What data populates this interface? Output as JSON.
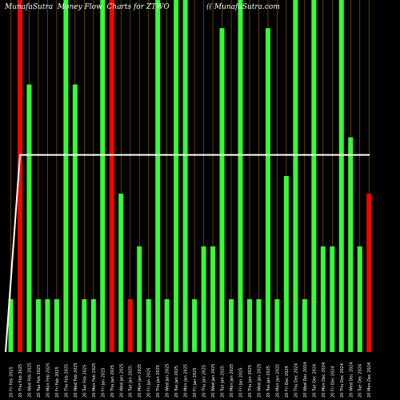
{
  "header": {
    "title": "MunafaSutra  Money Flow  Charts for ZTWO",
    "watermark": "(( MunafaSutra.com"
  },
  "chart_data": {
    "type": "bar",
    "title": "MunafaSutra  Money Flow  Charts for ZTWO",
    "xlabel": "",
    "ylabel": "",
    "grid": "vertical",
    "ylim": [
      0,
      100
    ],
    "categories": [
      "20 Fri Feb 2025",
      "20 Thu Feb 2025",
      "20 Wed Feb 2025",
      "20 Tue Feb 2025",
      "20 Mon Feb 2025",
      "20 Fri Feb 2025",
      "20 Thu Feb 2025",
      "20 Wed Feb 2025",
      "20 Tue Feb 2025",
      "20 Mon Feb 2025",
      "20 Fri Jan 2025",
      "20 Thu Jan 2025",
      "20 Wed Jan 2025",
      "20 Tue Jan 2025",
      "20 Mon Jan 2025",
      "20 Fri Jan 2025",
      "20 Thu Jan 2025",
      "20 Wed Jan 2025",
      "20 Tue Jan 2025",
      "20 Mon Jan 2025",
      "20 Fri Jan 2025",
      "20 Thu Jan 2025",
      "20 Wed Jan 2025",
      "20 Tue Jan 2025",
      "20 Mon Jan 2025",
      "20 Fri Jan 2025",
      "20 Thu Jan 2025",
      "20 Wed Jan 2025",
      "20 Tue Jan 2025",
      "20 Mon Jan 2025",
      "20 Fri Dec 2024",
      "20 Thu Dec 2024",
      "20 Wed Dec 2024",
      "20 Tue Dec 2024",
      "20 Mon Dec 2024",
      "20 Fri Dec 2024",
      "20 Thu Dec 2024",
      "20 Wed Dec 2024",
      "20 Tue Dec 2024",
      "20 Mon Dec 2024"
    ],
    "series": [
      {
        "values": [
          15,
          100,
          76,
          15,
          15,
          15,
          100,
          76,
          15,
          15,
          100,
          100,
          45,
          15,
          30,
          15,
          100,
          15,
          100,
          100,
          15,
          30,
          30,
          92,
          15,
          100,
          15,
          15,
          92,
          15,
          50,
          100,
          15,
          100,
          30,
          30,
          100,
          61,
          30,
          45
        ],
        "colors": [
          "green",
          "red",
          "green",
          "green",
          "green",
          "green",
          "green",
          "green",
          "green",
          "green",
          "green",
          "red",
          "green",
          "red",
          "green",
          "green",
          "green",
          "green",
          "green",
          "green",
          "green",
          "green",
          "green",
          "green",
          "green",
          "green",
          "green",
          "green",
          "green",
          "green",
          "green",
          "green",
          "green",
          "green",
          "green",
          "green",
          "green",
          "green",
          "green",
          "red"
        ]
      },
      {
        "type": "line",
        "values": [
          0,
          56,
          56,
          56,
          56,
          56,
          56,
          56,
          56,
          56,
          56,
          56,
          56,
          56,
          56,
          56,
          56,
          56,
          56,
          56,
          56,
          56,
          56,
          56,
          56,
          56,
          56,
          56,
          56,
          56,
          56,
          56,
          56,
          56,
          56,
          56,
          56,
          56,
          56,
          56
        ]
      }
    ],
    "colors": {
      "green": "#33ff33",
      "red": "#ff0000",
      "line": "#ffffff",
      "grid": "#8b5a00",
      "background": "#000000"
    }
  }
}
